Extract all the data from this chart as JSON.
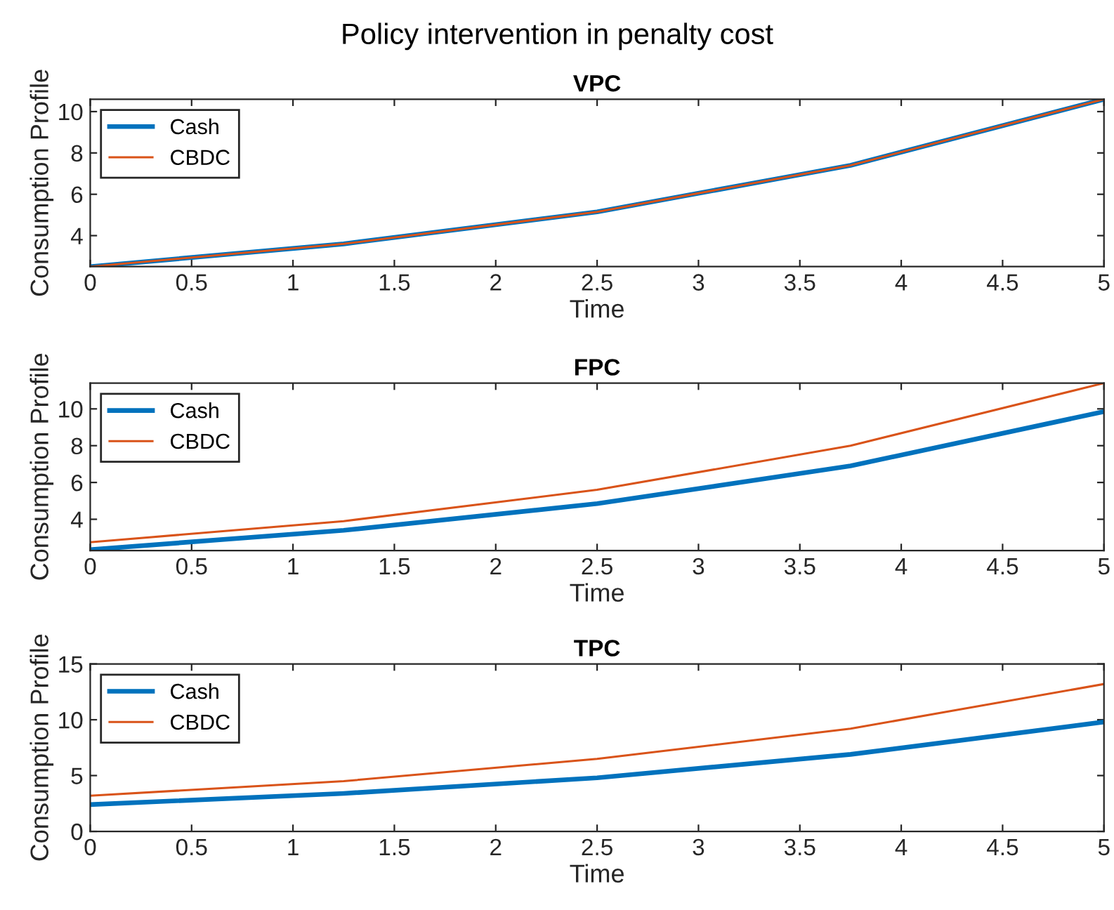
{
  "chart_data": [
    {
      "type": "line",
      "title": "VPC",
      "xlabel": "Time",
      "ylabel": "Consumption Profile",
      "annotations": [
        "Policy intervention in penalty cost"
      ],
      "x": [
        0,
        1.25,
        2.5,
        3.75,
        5
      ],
      "series": [
        {
          "name": "Cash",
          "color": "#0072bd",
          "values": [
            2.5,
            3.6,
            5.15,
            7.4,
            10.6
          ]
        },
        {
          "name": "CBDC",
          "color": "#d95319",
          "values": [
            2.5,
            3.6,
            5.15,
            7.4,
            10.6
          ]
        }
      ],
      "xlim": [
        0,
        5
      ],
      "xticks": [
        0,
        0.5,
        1,
        1.5,
        2,
        2.5,
        3,
        3.5,
        4,
        4.5,
        5
      ],
      "ylim": [
        2.5,
        10.6
      ],
      "yticks": [
        4,
        6,
        8,
        10
      ],
      "grid": false,
      "legend": "top left"
    },
    {
      "type": "line",
      "title": "FPC",
      "xlabel": "Time",
      "ylabel": "Consumption Profile",
      "x": [
        0,
        1.25,
        2.5,
        3.75,
        5
      ],
      "series": [
        {
          "name": "Cash",
          "color": "#0072bd",
          "values": [
            2.35,
            3.4,
            4.85,
            6.9,
            9.85
          ]
        },
        {
          "name": "CBDC",
          "color": "#d95319",
          "values": [
            2.75,
            3.9,
            5.6,
            8.0,
            11.4
          ]
        }
      ],
      "xlim": [
        0,
        5
      ],
      "xticks": [
        0,
        0.5,
        1,
        1.5,
        2,
        2.5,
        3,
        3.5,
        4,
        4.5,
        5
      ],
      "ylim": [
        2.3,
        11.4
      ],
      "yticks": [
        4,
        6,
        8,
        10
      ],
      "grid": false,
      "legend": "top left"
    },
    {
      "type": "line",
      "title": "TPC",
      "xlabel": "Time",
      "ylabel": "Consumption Profile",
      "x": [
        0,
        1.25,
        2.5,
        3.75,
        5
      ],
      "series": [
        {
          "name": "Cash",
          "color": "#0072bd",
          "values": [
            2.4,
            3.4,
            4.8,
            6.9,
            9.8
          ]
        },
        {
          "name": "CBDC",
          "color": "#d95319",
          "values": [
            3.2,
            4.5,
            6.5,
            9.2,
            13.2
          ]
        }
      ],
      "xlim": [
        0,
        5
      ],
      "xticks": [
        0,
        0.5,
        1,
        1.5,
        2,
        2.5,
        3,
        3.5,
        4,
        4.5,
        5
      ],
      "ylim": [
        0,
        15
      ],
      "yticks": [
        0,
        5,
        10,
        15
      ],
      "grid": false,
      "legend": "top left"
    }
  ]
}
